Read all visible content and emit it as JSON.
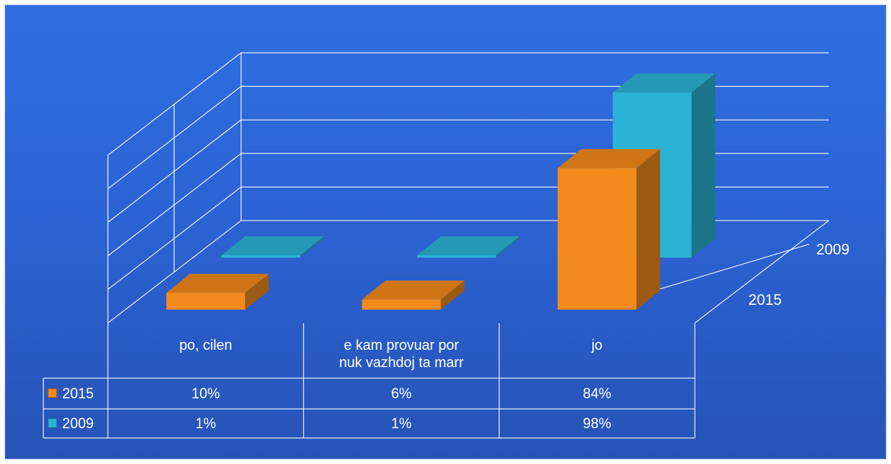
{
  "chart_data": {
    "type": "bar",
    "variant": "3d-clustered-with-data-table",
    "categories": [
      "po, cilen",
      "e kam provuar por nuk vazhdoj ta marr",
      "jo"
    ],
    "category_lines": [
      [
        "po, cilen"
      ],
      [
        "e kam provuar por",
        "nuk vazhdoj ta marr"
      ],
      [
        "jo"
      ]
    ],
    "series": [
      {
        "name": "2015",
        "values": [
          10,
          6,
          84
        ],
        "labels": [
          "10%",
          "6%",
          "84%"
        ],
        "color": "#f28a1c"
      },
      {
        "name": "2009",
        "values": [
          1,
          1,
          98
        ],
        "labels": [
          "1%",
          "1%",
          "98%"
        ],
        "color": "#2bb3d6"
      }
    ],
    "ylim": [
      0,
      100
    ],
    "grid": true,
    "legend": "data-table"
  }
}
